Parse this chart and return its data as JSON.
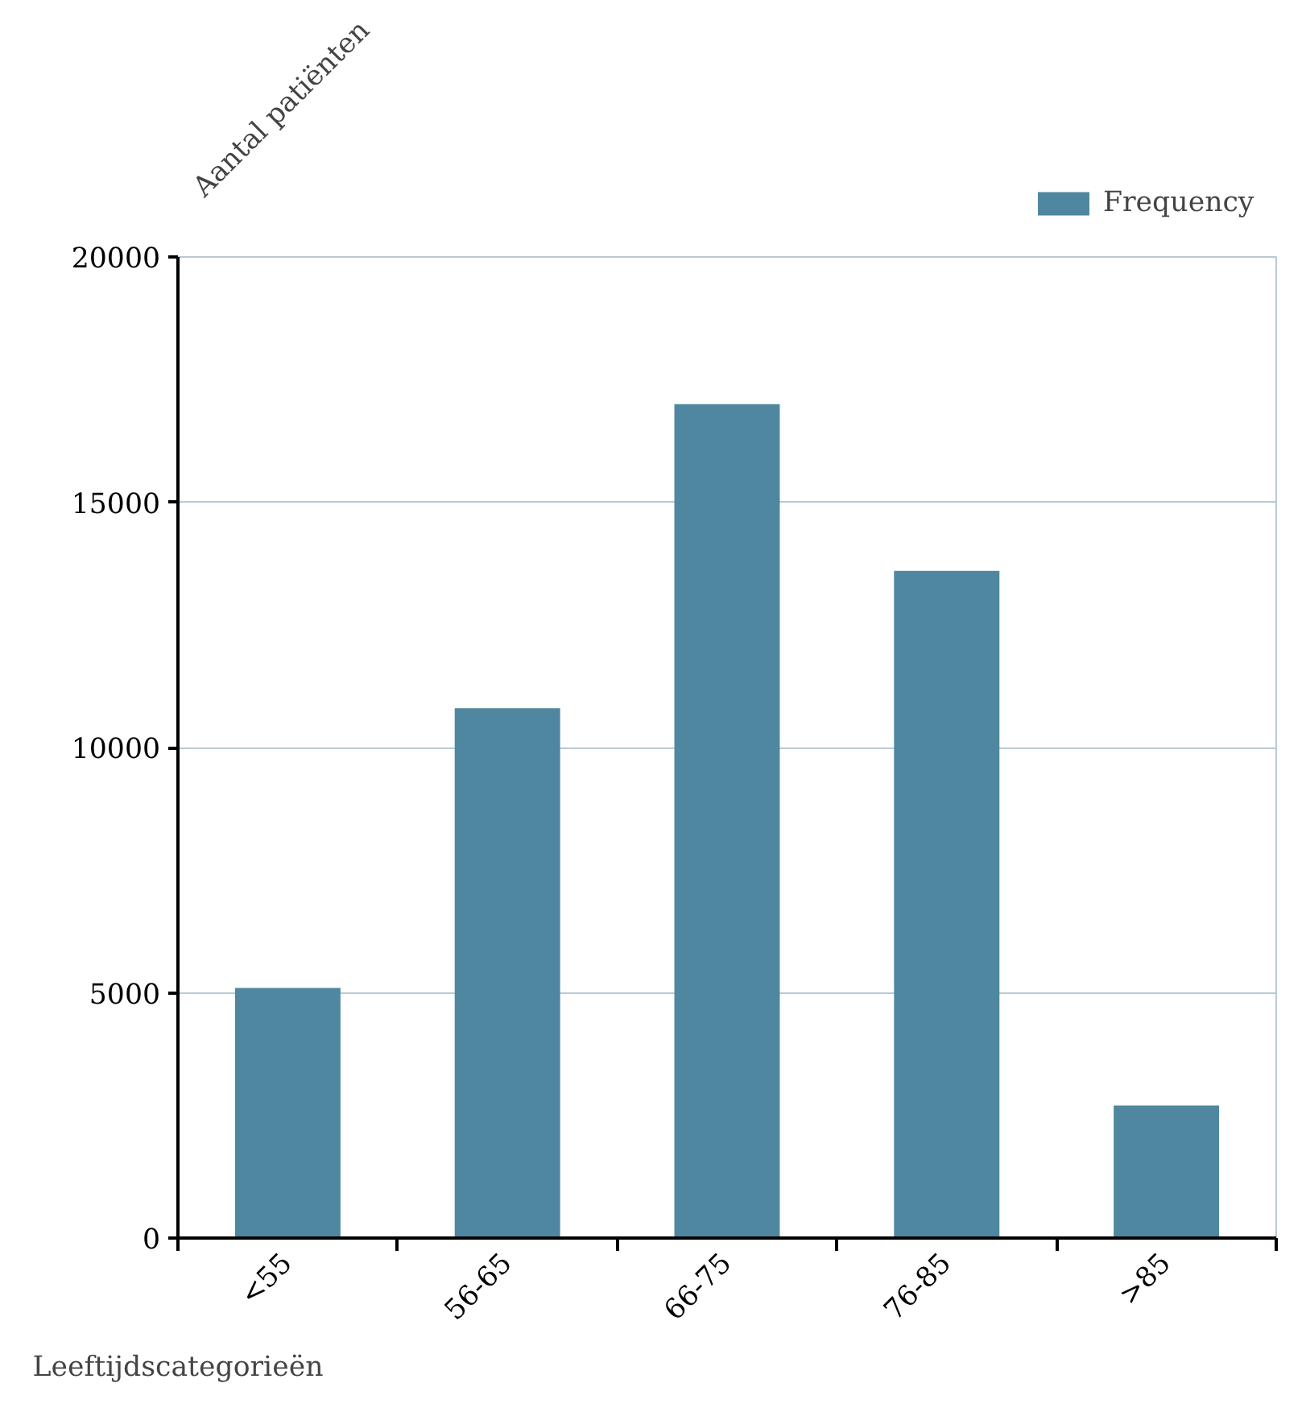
{
  "chart_data": {
    "type": "bar",
    "xlabel": "Leeftijdscategorieën",
    "ylabel": "Aantal patiënten",
    "categories": [
      "<55",
      "56-65",
      "66-75",
      "76-85",
      ">85"
    ],
    "series": [
      {
        "name": "Frequency",
        "color": "#4f87a0",
        "values": [
          5100,
          10800,
          17000,
          13600,
          2700
        ]
      }
    ],
    "ylim": [
      0,
      20000
    ],
    "yticks": [
      0,
      5000,
      10000,
      15000,
      20000
    ],
    "grid": "y",
    "legend": "top right"
  }
}
